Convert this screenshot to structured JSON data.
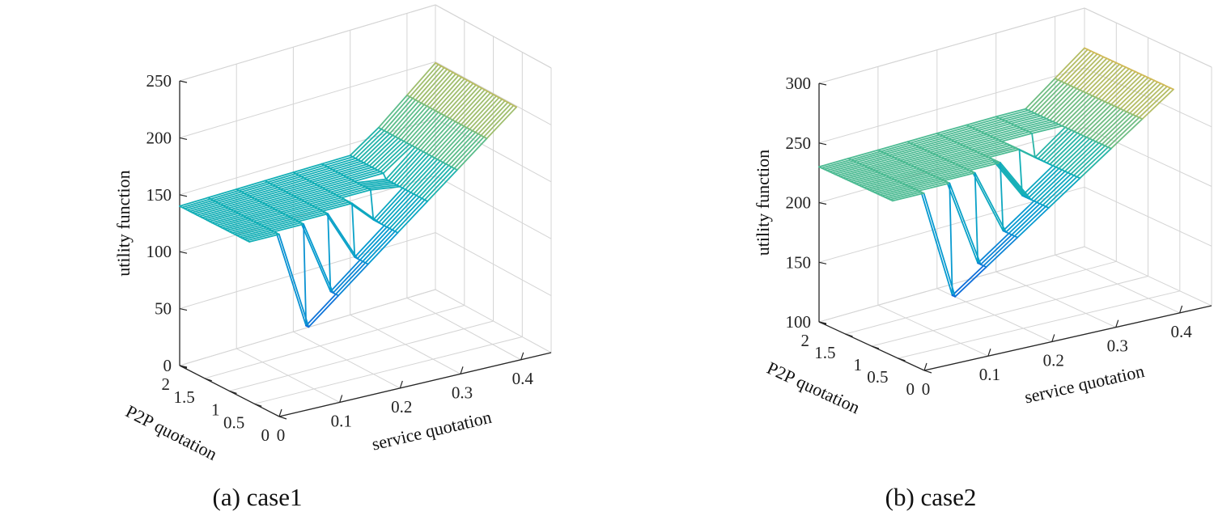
{
  "chart_data": [
    {
      "type": "surface",
      "caption": "(a) case1",
      "zlabel": "utility function",
      "xlabel": "service quotation",
      "ylabel": "P2P quotation",
      "x_ticks": [
        "0",
        "0.1",
        "0.2",
        "0.3",
        "0.4"
      ],
      "y_ticks": [
        "0",
        "0.5",
        "1",
        "1.5",
        "2"
      ],
      "z_ticks": [
        "0",
        "50",
        "100",
        "150",
        "200",
        "250"
      ],
      "xlim": [
        0,
        0.45
      ],
      "ylim": [
        0,
        2
      ],
      "zlim": [
        0,
        250
      ],
      "x": [
        0,
        0.05,
        0.1,
        0.15,
        0.2,
        0.25,
        0.3,
        0.35,
        0.4,
        0.45
      ],
      "y_range": [
        0.6,
        2
      ],
      "surface_profile": {
        "plateau_z": 140,
        "valley_z_at_x0": 10,
        "valley_z_slope_per_unit_x": 420,
        "steps": [
          {
            "x": 0.0,
            "y_break": 0.6
          },
          {
            "x": 0.05,
            "y_break": 0.6
          },
          {
            "x": 0.1,
            "y_break": 0.7
          },
          {
            "x": 0.15,
            "y_break": 0.8
          },
          {
            "x": 0.2,
            "y_break": 0.9
          },
          {
            "x": 0.25,
            "y_break": 1.1
          },
          {
            "x": 0.3,
            "y_break": 1.4
          },
          {
            "x": 0.35,
            "y_break": 2.0
          },
          {
            "x": 0.4,
            "y_break": 2.0
          },
          {
            "x": 0.45,
            "y_break": 2.0
          }
        ]
      }
    },
    {
      "type": "surface",
      "caption": "(b) case2",
      "zlabel": "utility function",
      "xlabel": "service quotation",
      "ylabel": "P2P quotation",
      "x_ticks": [
        "0",
        "0.1",
        "0.2",
        "0.3",
        "0.4"
      ],
      "y_ticks": [
        "0",
        "0.5",
        "1",
        "1.5",
        "2"
      ],
      "z_ticks": [
        "100",
        "150",
        "200",
        "250",
        "300"
      ],
      "xlim": [
        0,
        0.45
      ],
      "ylim": [
        0,
        2
      ],
      "zlim": [
        100,
        300
      ],
      "x": [
        0,
        0.05,
        0.1,
        0.15,
        0.2,
        0.25,
        0.3,
        0.35,
        0.4,
        0.45
      ],
      "y_range": [
        0.6,
        2
      ],
      "surface_profile": {
        "plateau_z": 230,
        "valley_z_at_x0": 100,
        "valley_z_slope_per_unit_x": 370,
        "steps": [
          {
            "x": 0.0,
            "y_break": 0.6
          },
          {
            "x": 0.05,
            "y_break": 0.6
          },
          {
            "x": 0.1,
            "y_break": 0.7
          },
          {
            "x": 0.15,
            "y_break": 0.8
          },
          {
            "x": 0.2,
            "y_break": 0.9
          },
          {
            "x": 0.25,
            "y_break": 1.1
          },
          {
            "x": 0.3,
            "y_break": 1.4
          },
          {
            "x": 0.35,
            "y_break": 2.0
          },
          {
            "x": 0.4,
            "y_break": 2.0
          },
          {
            "x": 0.45,
            "y_break": 2.0
          }
        ]
      }
    }
  ]
}
